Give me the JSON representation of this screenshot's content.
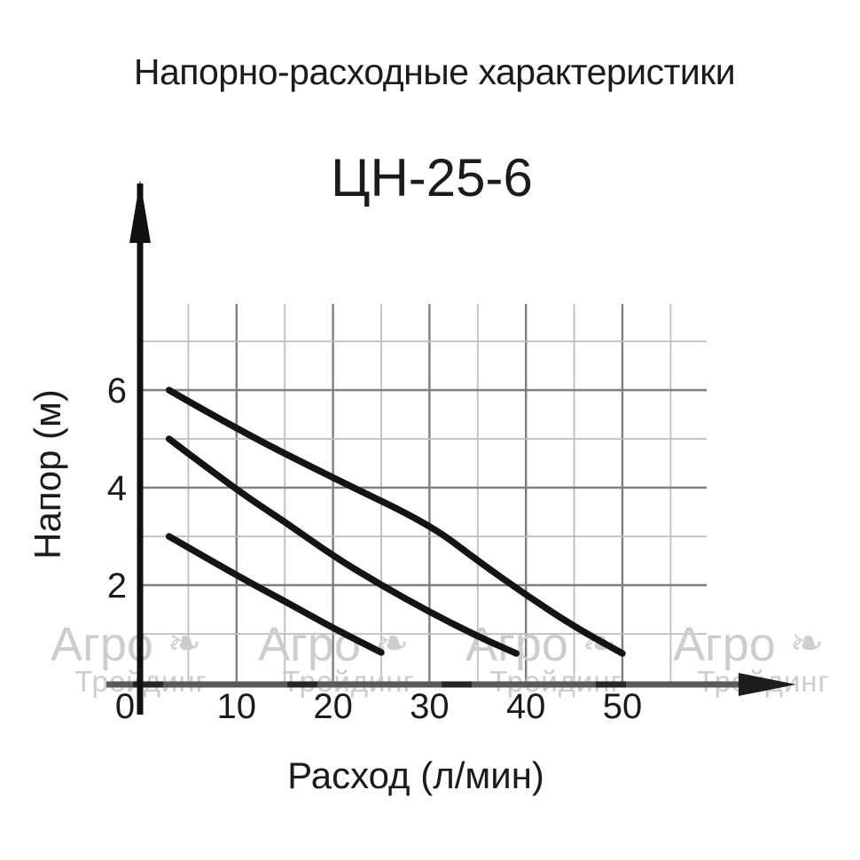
{
  "header": {
    "title": "Напорно-расходные характеристики",
    "model": "ЦН-25-6"
  },
  "watermark": {
    "line1": "Агро",
    "ornament": "❧",
    "line2": "Трейдинг"
  },
  "chart_data": {
    "type": "line",
    "title": "ЦН-25-6",
    "xlabel": "Расход (л/мин)",
    "ylabel": "Напор (м)",
    "x_ticks": [
      0,
      10,
      20,
      30,
      40,
      50
    ],
    "y_ticks": [
      2,
      4,
      6
    ],
    "xlim": [
      0,
      57
    ],
    "ylim": [
      0,
      7.8
    ],
    "grid": {
      "on": true,
      "x_start": 5,
      "x_end": 55,
      "x_step": 5,
      "x_major_every": 10,
      "y_start": 1,
      "y_end": 7,
      "y_step": 1,
      "y_major_every": 2
    },
    "legend": "none",
    "series": [
      {
        "name": "head-6m-curve",
        "points": [
          [
            3,
            6
          ],
          [
            10,
            5.2
          ],
          [
            20,
            4.2
          ],
          [
            30,
            3.25
          ],
          [
            35,
            2.5
          ],
          [
            40,
            1.8
          ],
          [
            45,
            1.15
          ],
          [
            50,
            0.6
          ]
        ]
      },
      {
        "name": "head-5m-curve",
        "points": [
          [
            3,
            5
          ],
          [
            10,
            3.95
          ],
          [
            15,
            3.3
          ],
          [
            20,
            2.6
          ],
          [
            25,
            2.0
          ],
          [
            30,
            1.45
          ],
          [
            35,
            0.95
          ],
          [
            39,
            0.6
          ]
        ]
      },
      {
        "name": "head-3m-curve",
        "points": [
          [
            3,
            3
          ],
          [
            10,
            2.2
          ],
          [
            15,
            1.67
          ],
          [
            20,
            1.12
          ],
          [
            25,
            0.62
          ]
        ]
      }
    ],
    "colors": {
      "curve": "#141414",
      "grid_major": "#7f7f7f",
      "grid_minor": "#bdbdbd",
      "y_axis": "#111111",
      "x_axis": "#5a5a5a",
      "x_axis_dash": "#262626",
      "text": "#1b1b1b",
      "watermark": "#cdcdcd"
    }
  }
}
